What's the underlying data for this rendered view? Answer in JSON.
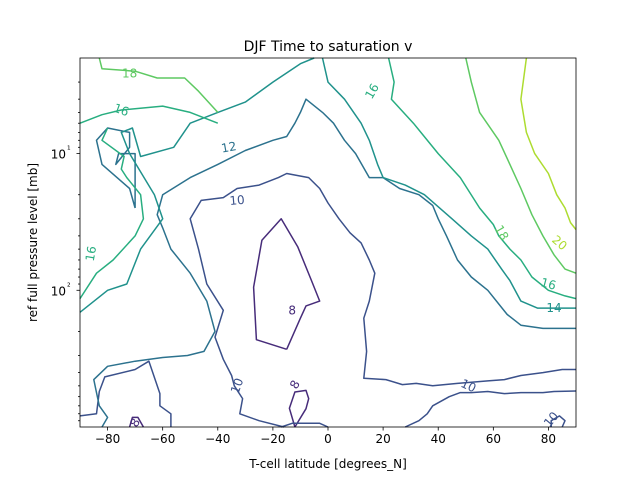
{
  "chart_data": {
    "type": "contour",
    "title": "DJF Time to saturation v",
    "xlabel": "T-cell latitude [degrees_N]",
    "ylabel": "ref full pressure level [mb]",
    "xlim": [
      -90,
      90
    ],
    "ylim": [
      1000,
      2
    ],
    "yscale": "log",
    "x_ticks": [
      -80,
      -60,
      -40,
      -20,
      0,
      20,
      40,
      60,
      80
    ],
    "x_tick_labels": [
      "−80",
      "−60",
      "−40",
      "−20",
      "0",
      "20",
      "40",
      "60",
      "80"
    ],
    "y_ticks": [
      10,
      100
    ],
    "y_tick_labels": [
      "10¹",
      "10²"
    ],
    "y_minor_ticks": [
      3,
      4,
      5,
      6,
      7,
      8,
      9,
      20,
      30,
      40,
      50,
      60,
      70,
      80,
      90,
      200,
      300,
      400,
      500,
      600,
      700,
      800,
      900
    ],
    "colormap": "viridis",
    "levels": [
      {
        "value": 8,
        "color": "#472c7a",
        "points": [
          [
            -15,
            270
          ],
          [
            -26,
            230
          ],
          [
            -27,
            95
          ],
          [
            -24,
            43
          ],
          [
            -17,
            30
          ],
          [
            -11,
            48
          ],
          [
            -6,
            85
          ],
          [
            -3,
            120
          ],
          [
            -8,
            130
          ],
          [
            -10,
            160
          ],
          [
            -15,
            270
          ]
        ]
      },
      {
        "value": 8,
        "color": "#472c7a",
        "points": [
          [
            -12,
            1000
          ],
          [
            -14,
            730
          ],
          [
            -12,
            555
          ],
          [
            -8,
            540
          ],
          [
            -7,
            620
          ],
          [
            -8,
            735
          ],
          [
            -12,
            1000
          ]
        ]
      },
      {
        "value": 8,
        "color": "#472c7a",
        "points": [
          [
            -72,
            1000
          ],
          [
            -71,
            850
          ],
          [
            -69,
            850
          ],
          [
            -67,
            1000
          ]
        ]
      },
      {
        "value": 10,
        "color": "#3b518b",
        "points": [
          [
            -90,
            830
          ],
          [
            -84,
            800
          ],
          [
            -83,
            550
          ],
          [
            -81,
            430
          ],
          [
            -70,
            380
          ],
          [
            -65,
            330
          ],
          [
            -61,
            570
          ],
          [
            -61,
            700
          ],
          [
            -57,
            800
          ],
          [
            -57,
            1000
          ]
        ]
      },
      {
        "value": 10,
        "color": "#3b518b",
        "points": [
          [
            -17,
            1000
          ],
          [
            -13,
            940
          ],
          [
            -3,
            940
          ],
          [
            0,
            1000
          ]
        ]
      },
      {
        "value": 10,
        "color": "#3b518b",
        "points": [
          [
            -16,
            1000
          ],
          [
            -25,
            900
          ],
          [
            -32,
            800
          ],
          [
            -31,
            620
          ],
          [
            -34,
            500
          ],
          [
            -35,
            420
          ],
          [
            -38,
            320
          ],
          [
            -41,
            220
          ],
          [
            -38,
            140
          ],
          [
            -44,
            90
          ],
          [
            -47,
            50
          ],
          [
            -50,
            30
          ],
          [
            -46,
            22
          ],
          [
            -38,
            21
          ],
          [
            -33,
            18
          ],
          [
            -25,
            17
          ],
          [
            -18,
            15
          ],
          [
            -15,
            14
          ],
          [
            -7,
            15
          ],
          [
            -3,
            18
          ],
          [
            0,
            23
          ],
          [
            4,
            30
          ],
          [
            8,
            38
          ],
          [
            12,
            45
          ],
          [
            15,
            60
          ],
          [
            17,
            75
          ],
          [
            15,
            120
          ],
          [
            13,
            160
          ],
          [
            14,
            280
          ],
          [
            13,
            440
          ],
          [
            21,
            450
          ],
          [
            27,
            490
          ],
          [
            32,
            480
          ],
          [
            38,
            500
          ],
          [
            47,
            480
          ],
          [
            58,
            460
          ],
          [
            64,
            450
          ],
          [
            70,
            420
          ],
          [
            78,
            400
          ],
          [
            85,
            380
          ],
          [
            90,
            380
          ]
        ]
      },
      {
        "value": 10,
        "color": "#3b518b",
        "points": [
          [
            28,
            1000
          ],
          [
            33,
            900
          ],
          [
            36,
            800
          ],
          [
            38,
            700
          ],
          [
            44,
            600
          ],
          [
            48,
            560
          ],
          [
            52,
            560
          ],
          [
            58,
            550
          ],
          [
            64,
            570
          ],
          [
            70,
            560
          ],
          [
            78,
            560
          ],
          [
            82,
            550
          ],
          [
            90,
            545
          ]
        ]
      },
      {
        "value": 10,
        "color": "#3b518b",
        "points": [
          [
            81,
            1000
          ],
          [
            81,
            900
          ],
          [
            84,
            830
          ],
          [
            86,
            900
          ],
          [
            85,
            1000
          ]
        ]
      },
      {
        "value": 12,
        "color": "#2c728e",
        "points": [
          [
            -82,
            1000
          ],
          [
            -80,
            850
          ],
          [
            -83,
            700
          ],
          [
            -84,
            560
          ],
          [
            -85,
            450
          ],
          [
            -80,
            360
          ],
          [
            -70,
            330
          ],
          [
            -60,
            310
          ],
          [
            -51,
            300
          ],
          [
            -45,
            280
          ],
          [
            -41,
            200
          ],
          [
            -44,
            120
          ],
          [
            -50,
            75
          ],
          [
            -57,
            50
          ],
          [
            -60,
            35
          ],
          [
            -62,
            28
          ],
          [
            -60,
            20
          ],
          [
            -50,
            15
          ],
          [
            -40,
            12
          ],
          [
            -30,
            9.5
          ],
          [
            -20,
            8
          ],
          [
            -15,
            7.5
          ],
          [
            -12,
            6
          ],
          [
            -10,
            5
          ],
          [
            -8,
            4
          ],
          [
            -2,
            5
          ],
          [
            2,
            6
          ],
          [
            6,
            8
          ],
          [
            10,
            10
          ],
          [
            15,
            15
          ],
          [
            20,
            15
          ],
          [
            26,
            18
          ],
          [
            33,
            20
          ],
          [
            38,
            24
          ],
          [
            40,
            30
          ],
          [
            43,
            40
          ],
          [
            47,
            60
          ],
          [
            52,
            80
          ],
          [
            58,
            100
          ],
          [
            65,
            150
          ],
          [
            70,
            180
          ],
          [
            78,
            190
          ],
          [
            86,
            190
          ],
          [
            90,
            190
          ]
        ]
      },
      {
        "value": 12,
        "color": "#2c728e",
        "points": [
          [
            -70,
            25
          ],
          [
            -72,
            18
          ],
          [
            -82,
            12
          ],
          [
            -84,
            8
          ],
          [
            -80,
            6.5
          ],
          [
            -72,
            7
          ],
          [
            -72,
            9
          ],
          [
            -77,
            12
          ],
          [
            -76,
            10
          ],
          [
            -70,
            10
          ],
          [
            -70,
            25
          ]
        ]
      },
      {
        "value": 14,
        "color": "#20928c",
        "points": [
          [
            -90,
            145
          ],
          [
            -80,
            100
          ],
          [
            -73,
            90
          ],
          [
            -68,
            50
          ],
          [
            -60,
            30
          ],
          [
            -63,
            20
          ],
          [
            -72,
            10
          ],
          [
            -75,
            7
          ],
          [
            -71,
            6.5
          ],
          [
            -68,
            10.5
          ],
          [
            -56,
            9
          ],
          [
            -50,
            6
          ],
          [
            -40,
            5
          ],
          [
            -30,
            4.2
          ],
          [
            -20,
            3
          ],
          [
            -10,
            2.2
          ],
          [
            -5,
            2
          ]
        ]
      },
      {
        "value": 14,
        "color": "#20928c",
        "points": [
          [
            -2,
            2
          ],
          [
            0,
            3
          ],
          [
            6,
            4
          ],
          [
            12,
            6
          ],
          [
            15,
            8
          ],
          [
            18,
            12
          ],
          [
            20,
            15
          ],
          [
            28,
            17
          ],
          [
            35,
            20
          ],
          [
            45,
            30
          ],
          [
            52,
            40
          ],
          [
            58,
            50
          ],
          [
            63,
            70
          ],
          [
            66,
            85
          ],
          [
            70,
            120
          ],
          [
            76,
            135
          ],
          [
            90,
            135
          ]
        ]
      },
      {
        "value": 16,
        "color": "#28ae80",
        "points": [
          [
            -90,
            115
          ],
          [
            -84,
            75
          ],
          [
            -78,
            60
          ],
          [
            -70,
            40
          ],
          [
            -67,
            30
          ],
          [
            -68,
            20
          ],
          [
            -73,
            15
          ],
          [
            -75,
            13
          ],
          [
            -74,
            10.5
          ],
          [
            -82,
            8
          ],
          [
            -80,
            6.5
          ]
        ]
      },
      {
        "value": 16,
        "color": "#28ae80",
        "points": [
          [
            -90,
            6
          ],
          [
            -82,
            5.2
          ],
          [
            -75,
            4.8
          ],
          [
            -60,
            4.5
          ],
          [
            -50,
            5
          ],
          [
            -40,
            6
          ]
        ]
      },
      {
        "value": 16,
        "color": "#28ae80",
        "points": [
          [
            22,
            2
          ],
          [
            24,
            3
          ],
          [
            23,
            4
          ],
          [
            31,
            6
          ],
          [
            40,
            10
          ],
          [
            48,
            15
          ],
          [
            55,
            25
          ],
          [
            60,
            33
          ],
          [
            62,
            40
          ],
          [
            66,
            50
          ],
          [
            70,
            60
          ],
          [
            74,
            80
          ],
          [
            80,
            100
          ],
          [
            86,
            110
          ],
          [
            90,
            115
          ]
        ]
      },
      {
        "value": 18,
        "color": "#5ec962",
        "points": [
          [
            -83,
            2
          ],
          [
            -82,
            2.4
          ],
          [
            -70,
            2.5
          ],
          [
            -62,
            2.8
          ],
          [
            -52,
            2.8
          ],
          [
            -47,
            3.5
          ],
          [
            -40,
            5
          ]
        ]
      },
      {
        "value": 18,
        "color": "#5ec962",
        "points": [
          [
            50,
            2
          ],
          [
            52,
            3
          ],
          [
            55,
            5
          ],
          [
            62,
            8
          ],
          [
            66,
            12
          ],
          [
            70,
            18
          ],
          [
            74,
            28
          ],
          [
            78,
            40
          ],
          [
            82,
            55
          ],
          [
            86,
            70
          ],
          [
            90,
            75
          ]
        ]
      },
      {
        "value": 20,
        "color": "#addc30",
        "points": [
          [
            72,
            2
          ],
          [
            70,
            4
          ],
          [
            72,
            7
          ],
          [
            75,
            10
          ],
          [
            80,
            14
          ],
          [
            83,
            20
          ],
          [
            86,
            25
          ],
          [
            88,
            32
          ],
          [
            90,
            36
          ]
        ]
      }
    ],
    "labels": [
      {
        "text": "8",
        "x": -13,
        "y": 140,
        "rotation": 0,
        "color": "#472c7a"
      },
      {
        "text": "8",
        "x": -12,
        "y": 490,
        "rotation": -60,
        "color": "#472c7a"
      },
      {
        "text": "8",
        "x": -70,
        "y": 930,
        "rotation": -60,
        "color": "#472c7a"
      },
      {
        "text": "10",
        "x": -33,
        "y": 22,
        "rotation": -5,
        "color": "#3b518b"
      },
      {
        "text": "10",
        "x": -33,
        "y": 500,
        "rotation": -70,
        "color": "#3b518b"
      },
      {
        "text": "10",
        "x": 51,
        "y": 500,
        "rotation": 25,
        "color": "#3b518b"
      },
      {
        "text": "10",
        "x": 81,
        "y": 880,
        "rotation": -50,
        "color": "#3b518b"
      },
      {
        "text": "12",
        "x": -36,
        "y": 9,
        "rotation": -10,
        "color": "#2c728e"
      },
      {
        "text": "14",
        "x": 82,
        "y": 135,
        "rotation": 0,
        "color": "#20928c"
      },
      {
        "text": "16",
        "x": -86,
        "y": 54,
        "rotation": -80,
        "color": "#28ae80"
      },
      {
        "text": "16",
        "x": -75,
        "y": 4.8,
        "rotation": 20,
        "color": "#28ae80"
      },
      {
        "text": "16",
        "x": 16,
        "y": 3.5,
        "rotation": -60,
        "color": "#28ae80"
      },
      {
        "text": "16",
        "x": 80,
        "y": 90,
        "rotation": 15,
        "color": "#28ae80"
      },
      {
        "text": "18",
        "x": -72,
        "y": 2.6,
        "rotation": 0,
        "color": "#5ec962"
      },
      {
        "text": "18",
        "x": 63,
        "y": 38,
        "rotation": 60,
        "color": "#5ec962"
      },
      {
        "text": "20",
        "x": 84,
        "y": 45,
        "rotation": 40,
        "color": "#addc30"
      }
    ]
  }
}
